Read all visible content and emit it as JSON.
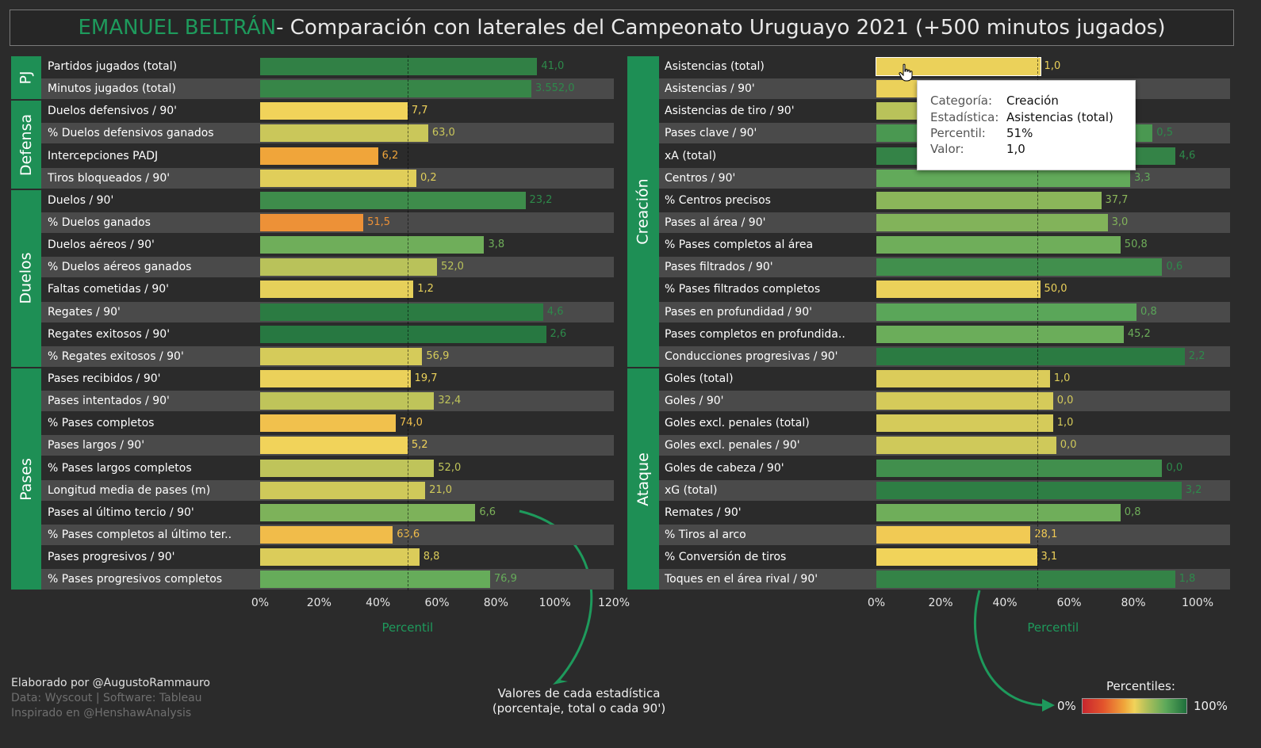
{
  "title": {
    "name": "EMANUEL BELTRÁN",
    "rest": " - Comparación con laterales del Campeonato Uruguayo 2021 (+500 minutos jugados)"
  },
  "colors": {
    "name": "#1e9a5c",
    "category_bg": "#1e8f55",
    "scale": [
      "#c8262e",
      "#e3542c",
      "#f0a53a",
      "#f1d35a",
      "#b9c25a",
      "#5da95a",
      "#1e6f3c"
    ]
  },
  "chart_data": [
    {
      "type": "bar",
      "orientation": "horizontal",
      "xlabel": "Percentil",
      "xticks": [
        "0%",
        "20%",
        "40%",
        "60%",
        "80%",
        "100%",
        "120%"
      ],
      "xlim": [
        0,
        120
      ],
      "reference_line": 50,
      "groups": [
        {
          "name": "PJ",
          "rows": [
            {
              "label": "Partidos jugados (total)",
              "percentile": 94,
              "value": "41,0"
            },
            {
              "label": "Minutos jugados (total)",
              "percentile": 92,
              "value": "3.552,0"
            }
          ]
        },
        {
          "name": "Defensa",
          "rows": [
            {
              "label": "Duelos defensivos / 90'",
              "percentile": 50,
              "value": "7,7"
            },
            {
              "label": "% Duelos defensivos ganados",
              "percentile": 57,
              "value": "63,0"
            },
            {
              "label": "Intercepciones PADJ",
              "percentile": 40,
              "value": "6,2"
            },
            {
              "label": "Tiros bloqueados / 90'",
              "percentile": 53,
              "value": "0,2"
            }
          ]
        },
        {
          "name": "Duelos",
          "rows": [
            {
              "label": "Duelos / 90'",
              "percentile": 90,
              "value": "23,2"
            },
            {
              "label": "% Duelos ganados",
              "percentile": 35,
              "value": "51,5"
            },
            {
              "label": "Duelos aéreos / 90'",
              "percentile": 76,
              "value": "3,8"
            },
            {
              "label": "% Duelos aéreos ganados",
              "percentile": 60,
              "value": "52,0"
            },
            {
              "label": "Faltas cometidas / 90'",
              "percentile": 52,
              "value": "1,2"
            },
            {
              "label": "Regates / 90'",
              "percentile": 96,
              "value": "4,6"
            },
            {
              "label": "Regates exitosos / 90'",
              "percentile": 97,
              "value": "2,6"
            },
            {
              "label": "% Regates exitosos / 90'",
              "percentile": 55,
              "value": "56,9"
            }
          ]
        },
        {
          "name": "Pases",
          "rows": [
            {
              "label": "Pases recibidos  / 90'",
              "percentile": 51,
              "value": "19,7"
            },
            {
              "label": "Pases intentados / 90'",
              "percentile": 59,
              "value": "32,4"
            },
            {
              "label": "% Pases completos",
              "percentile": 46,
              "value": "74,0"
            },
            {
              "label": "Pases largos / 90'",
              "percentile": 50,
              "value": "5,2"
            },
            {
              "label": "% Pases largos completos",
              "percentile": 59,
              "value": "52,0"
            },
            {
              "label": "Longitud media de pases (m)",
              "percentile": 56,
              "value": "21,0"
            },
            {
              "label": "Pases al último tercio / 90'",
              "percentile": 73,
              "value": "6,6"
            },
            {
              "label": "% Pases completos al último ter..",
              "percentile": 45,
              "value": "63,6"
            },
            {
              "label": "Pases progresivos / 90'",
              "percentile": 54,
              "value": "8,8"
            },
            {
              "label": "% Pases progresivos completos",
              "percentile": 78,
              "value": "76,9"
            }
          ]
        }
      ]
    },
    {
      "type": "bar",
      "orientation": "horizontal",
      "xlabel": "Percentil",
      "xticks": [
        "0%",
        "20%",
        "40%",
        "60%",
        "80%",
        "100%"
      ],
      "xlim": [
        0,
        100
      ],
      "reference_line": 50,
      "groups": [
        {
          "name": "Creación",
          "rows": [
            {
              "label": "Asistencias (total)",
              "percentile": 51,
              "value": "1,0"
            },
            {
              "label": "Asistencias / 90'",
              "percentile": 51,
              "value": ""
            },
            {
              "label": "Asistencias de tiro / 90'",
              "percentile": 60,
              "value": ""
            },
            {
              "label": "Pases clave / 90'",
              "percentile": 86,
              "value": "0,5"
            },
            {
              "label": "xA (total)",
              "percentile": 93,
              "value": "4,6"
            },
            {
              "label": "Centros / 90'",
              "percentile": 79,
              "value": "3,3"
            },
            {
              "label": "% Centros precisos",
              "percentile": 70,
              "value": "37,7"
            },
            {
              "label": "Pases al área / 90'",
              "percentile": 72,
              "value": "3,0"
            },
            {
              "label": "% Pases completos al área",
              "percentile": 76,
              "value": "50,8"
            },
            {
              "label": "Pases filtrados / 90'",
              "percentile": 89,
              "value": "0,6"
            },
            {
              "label": "% Pases filtrados completos",
              "percentile": 51,
              "value": "50,0"
            },
            {
              "label": "Pases en profundidad / 90'",
              "percentile": 81,
              "value": "0,8"
            },
            {
              "label": "Pases completos en profundida..",
              "percentile": 77,
              "value": "45,2"
            },
            {
              "label": "Conducciones progresivas / 90'",
              "percentile": 96,
              "value": "2,2"
            }
          ]
        },
        {
          "name": "Ataque",
          "rows": [
            {
              "label": "Goles (total)",
              "percentile": 54,
              "value": "1,0"
            },
            {
              "label": "Goles / 90'",
              "percentile": 55,
              "value": "0,0"
            },
            {
              "label": "Goles excl. penales (total)",
              "percentile": 55,
              "value": "1,0"
            },
            {
              "label": "Goles excl. penales / 90'",
              "percentile": 56,
              "value": "0,0"
            },
            {
              "label": "Goles de cabeza / 90'",
              "percentile": 89,
              "value": "0,0"
            },
            {
              "label": "xG (total)",
              "percentile": 95,
              "value": "3,2"
            },
            {
              "label": "Remates / 90'",
              "percentile": 76,
              "value": "0,8"
            },
            {
              "label": "% Tiros al arco",
              "percentile": 48,
              "value": "28,1"
            },
            {
              "label": "% Conversión de tiros",
              "percentile": 50,
              "value": "3,1"
            },
            {
              "label": "Toques en el área rival / 90'",
              "percentile": 93,
              "value": "1,8"
            }
          ]
        }
      ]
    }
  ],
  "tooltip": {
    "categoria_label": "Categoría:",
    "categoria": "Creación",
    "estadistica_label": "Estadística:",
    "estadistica": "Asistencias (total)",
    "percentil_label": "Percentil:",
    "percentil": "51%",
    "valor_label": "Valor:",
    "valor": "1,0"
  },
  "footer": {
    "line1": "Elaborado por @AugustoRammauro",
    "line2": "Data: Wyscout | Software: Tableau",
    "line3": "Inspirado en @HenshawAnalysis"
  },
  "annotation": {
    "line1": "Valores de cada estadística",
    "line2": "(porcentaje, total o cada 90')"
  },
  "legend": {
    "title": "Percentiles:",
    "min": "0%",
    "max": "100%"
  }
}
